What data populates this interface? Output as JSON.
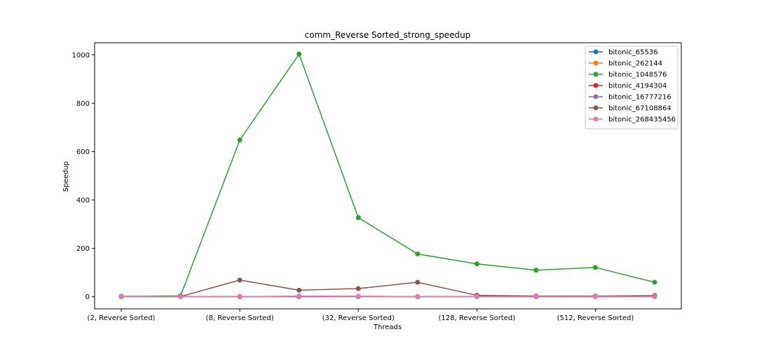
{
  "chart_data": {
    "type": "line",
    "title": "comm_Reverse Sorted_strong_speedup",
    "xlabel": "Threads",
    "ylabel": "Speedup",
    "ylim": [
      -50,
      1050
    ],
    "yticks": [
      0,
      200,
      400,
      600,
      800,
      1000
    ],
    "x": [
      2,
      4,
      8,
      16,
      32,
      64,
      128,
      256,
      512,
      1024
    ],
    "xtick_labels": [
      "(2, Reverse Sorted)",
      "(8, Reverse Sorted)",
      "(32, Reverse Sorted)",
      "(128, Reverse Sorted)",
      "(512, Reverse Sorted)"
    ],
    "xtick_indices": [
      0,
      2,
      4,
      6,
      8
    ],
    "legend_position": "top-right",
    "grid": false,
    "series": [
      {
        "name": "bitonic_65536",
        "color": "#1f77b4",
        "values": [
          1,
          0.5,
          0.5,
          2,
          1,
          0.5,
          1,
          0.5,
          0.5,
          1
        ]
      },
      {
        "name": "bitonic_262144",
        "color": "#ff7f0e",
        "values": [
          1,
          0.5,
          1,
          1,
          1,
          0.5,
          1,
          0.5,
          1,
          0.5
        ]
      },
      {
        "name": "bitonic_1048576",
        "color": "#2ca02c",
        "values": [
          1,
          4,
          648,
          1003,
          327,
          177,
          136,
          110,
          121,
          60
        ]
      },
      {
        "name": "bitonic_4194304",
        "color": "#d62728",
        "values": [
          1,
          0.5,
          0.5,
          0.5,
          1,
          0.5,
          1,
          0.5,
          0.5,
          2
        ]
      },
      {
        "name": "bitonic_16777216",
        "color": "#9467bd",
        "values": [
          1,
          0.5,
          0.5,
          2,
          2,
          0.5,
          0.5,
          0.5,
          0.5,
          0.5
        ]
      },
      {
        "name": "bitonic_67108864",
        "color": "#8c564b",
        "values": [
          2,
          1,
          69,
          27,
          34,
          60,
          6,
          3,
          3,
          5
        ]
      },
      {
        "name": "bitonic_268435456",
        "color": "#e377c2",
        "values": [
          1,
          0.5,
          0.5,
          3,
          2,
          1,
          1,
          0.5,
          0.5,
          0.5
        ]
      }
    ]
  }
}
